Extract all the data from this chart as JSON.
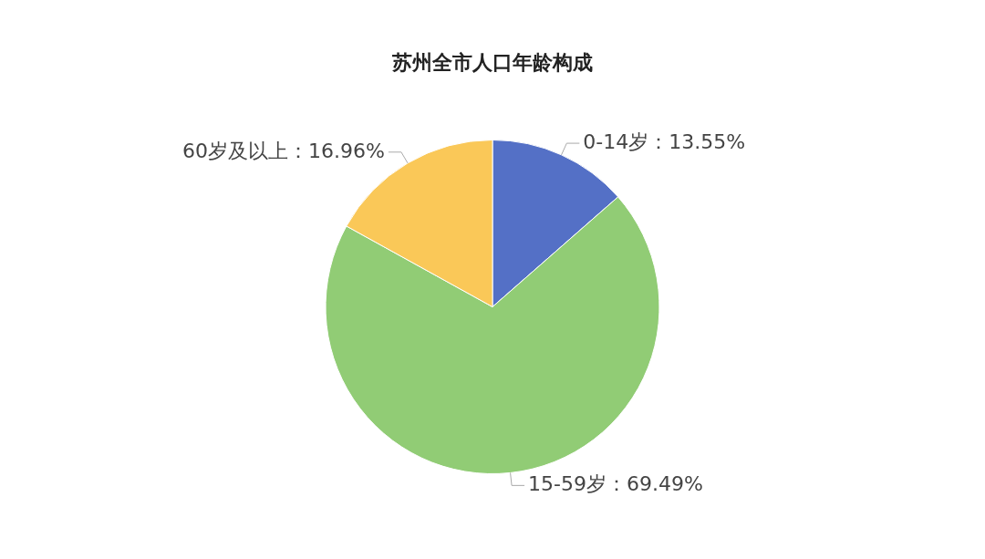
{
  "chart_data": {
    "type": "pie",
    "title": "苏州全市人口年龄构成",
    "categories": [
      "0-14岁",
      "15-59岁",
      "60岁及以上"
    ],
    "values": [
      13.55,
      69.49,
      16.96
    ],
    "colors": [
      "#5470c6",
      "#91cc75",
      "#fac858"
    ],
    "value_labels": [
      "：13.55%",
      "：69.49%",
      "：16.96%"
    ],
    "legend": false
  }
}
